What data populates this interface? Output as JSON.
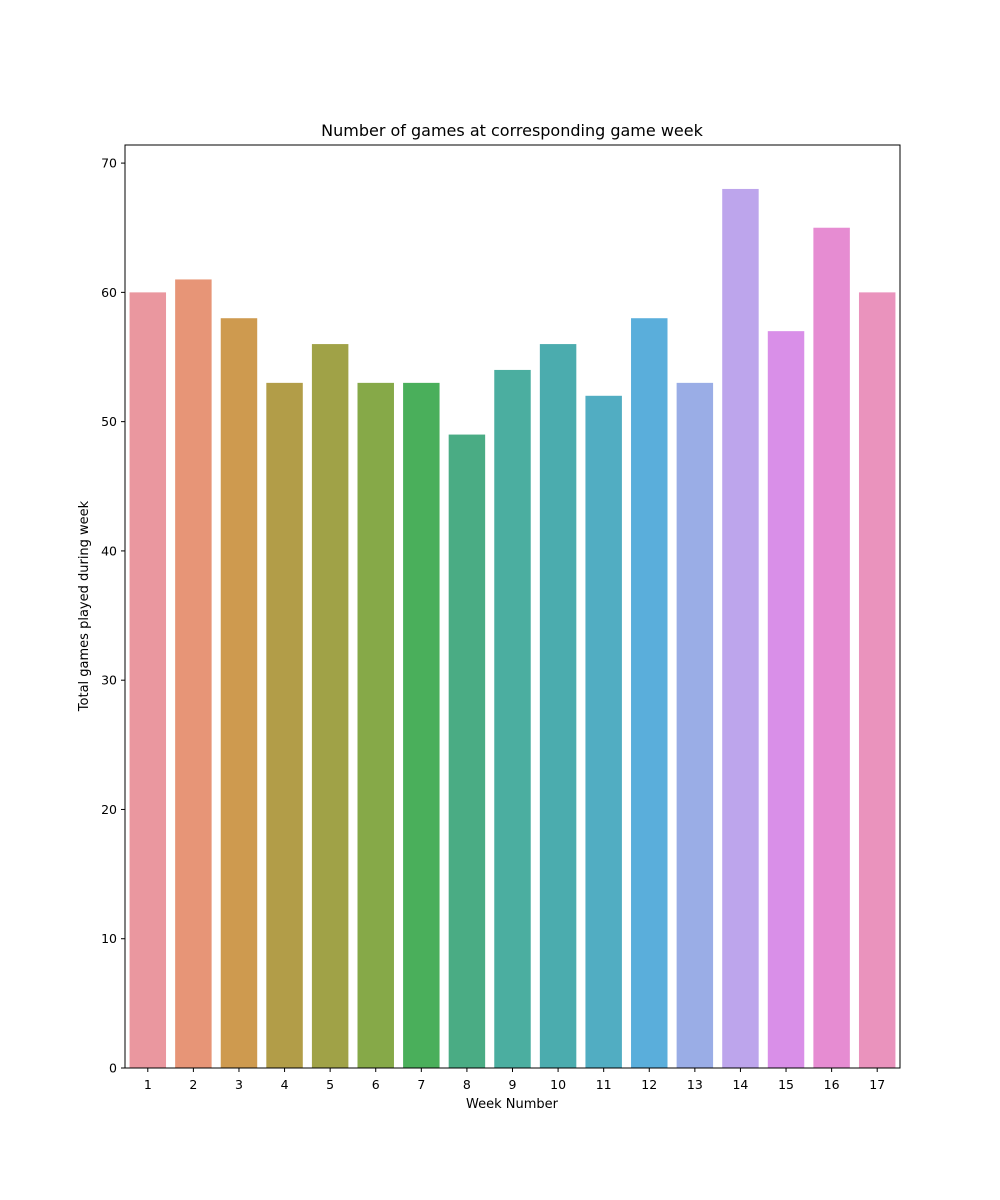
{
  "chart_data": {
    "type": "bar",
    "title": "Number of games at corresponding game week",
    "xlabel": "Week Number",
    "ylabel": "Total games played during week",
    "categories": [
      "1",
      "2",
      "3",
      "4",
      "5",
      "6",
      "7",
      "8",
      "9",
      "10",
      "11",
      "12",
      "13",
      "14",
      "15",
      "16",
      "17"
    ],
    "values": [
      60,
      61,
      58,
      53,
      56,
      53,
      53,
      49,
      54,
      56,
      52,
      58,
      53,
      68,
      57,
      65,
      60
    ],
    "colors": [
      "#ea979f",
      "#e79577",
      "#ce9a4f",
      "#b29d48",
      "#a0a247",
      "#86a948",
      "#4aaf5b",
      "#4aac84",
      "#4baea0",
      "#4bacae",
      "#51adc2",
      "#5aaedb",
      "#9aade6",
      "#bda5ec",
      "#d98fe8",
      "#e68cd2",
      "#ea93bd"
    ],
    "ylim": [
      0,
      71.4
    ],
    "yticks": [
      0,
      10,
      20,
      30,
      40,
      50,
      60,
      70
    ],
    "grid": false,
    "legend": "none"
  }
}
